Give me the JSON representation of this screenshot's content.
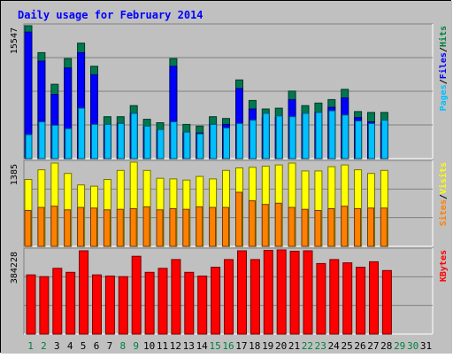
{
  "chart_data": [
    {
      "type": "bar",
      "title": "Daily usage for February 2014",
      "categories": [
        "1",
        "2",
        "3",
        "4",
        "5",
        "6",
        "7",
        "8",
        "9",
        "10",
        "11",
        "12",
        "13",
        "14",
        "15",
        "16",
        "17",
        "18",
        "19",
        "20",
        "21",
        "22",
        "23",
        "24",
        "25",
        "26",
        "27",
        "28",
        "29",
        "30",
        "31"
      ],
      "category_colors": [
        "#008040",
        "#008040",
        "#000000",
        "#000000",
        "#000000",
        "#000000",
        "#000000",
        "#008040",
        "#008040",
        "#000000",
        "#000000",
        "#000000",
        "#000000",
        "#000000",
        "#008040",
        "#008040",
        "#000000",
        "#000000",
        "#000000",
        "#000000",
        "#000000",
        "#008040",
        "#008040",
        "#000000",
        "#000000",
        "#000000",
        "#000000",
        "#000000",
        "#008040",
        "#008040",
        "#000000"
      ],
      "y_tick_label": "15547",
      "ymax": 15547,
      "right_labels": [
        {
          "text": "Pages",
          "color": "#00c0ff"
        },
        {
          "text": "/",
          "color": "#000000"
        },
        {
          "text": "Files",
          "color": "#0000ff"
        },
        {
          "text": "/",
          "color": "#000000"
        },
        {
          "text": "Hits",
          "color": "#008040"
        }
      ],
      "series": [
        {
          "name": "Hits",
          "color": "#007850",
          "values": [
            15547,
            12400,
            8700,
            11700,
            13500,
            10800,
            4900,
            4900,
            6200,
            4600,
            4200,
            11700,
            4000,
            3800,
            4900,
            4700,
            9200,
            6800,
            5800,
            5900,
            7900,
            6200,
            6500,
            6900,
            8100,
            5500,
            5400,
            5400,
            0,
            0,
            0
          ]
        },
        {
          "name": "Files",
          "color": "#0000ff",
          "values": [
            14800,
            11400,
            7500,
            10600,
            12400,
            9800,
            3800,
            4100,
            5300,
            3700,
            3300,
            10800,
            3000,
            3000,
            4000,
            4000,
            8200,
            5800,
            4800,
            4800,
            6900,
            5200,
            5400,
            6000,
            7100,
            4800,
            4300,
            4200,
            0,
            0,
            0
          ]
        },
        {
          "name": "Pages",
          "color": "#00c0ff",
          "values": [
            2800,
            4300,
            3900,
            3500,
            5900,
            4000,
            4000,
            4100,
            5300,
            3800,
            3400,
            4300,
            3100,
            2900,
            4000,
            3600,
            4100,
            4500,
            5300,
            5000,
            4900,
            5300,
            5400,
            5600,
            5100,
            4400,
            4100,
            4500,
            0,
            0,
            0
          ]
        }
      ]
    },
    {
      "type": "bar",
      "y_tick_label": "1385",
      "ymax": 1385,
      "right_labels": [
        {
          "text": "Sites",
          "color": "#ff8000"
        },
        {
          "text": "/",
          "color": "#000000"
        },
        {
          "text": "Visits",
          "color": "#ffff00"
        }
      ],
      "series": [
        {
          "name": "Visits",
          "color": "#ffff00",
          "values": [
            1100,
            1260,
            1370,
            1200,
            1010,
            990,
            1100,
            1250,
            1385,
            1250,
            1120,
            1110,
            1090,
            1150,
            1110,
            1250,
            1290,
            1300,
            1320,
            1340,
            1370,
            1240,
            1240,
            1310,
            1340,
            1260,
            1200,
            1250,
            0,
            0,
            0
          ]
        },
        {
          "name": "Sites",
          "color": "#ff8000",
          "values": [
            590,
            640,
            660,
            600,
            640,
            630,
            600,
            610,
            620,
            650,
            600,
            620,
            610,
            650,
            640,
            640,
            890,
            750,
            690,
            710,
            640,
            610,
            590,
            620,
            660,
            620,
            630,
            630,
            0,
            0,
            0
          ]
        }
      ]
    },
    {
      "type": "bar",
      "y_tick_label": "384228",
      "ymax": 384228,
      "right_labels": [
        {
          "text": "KBytes",
          "color": "#ff0000"
        }
      ],
      "series": [
        {
          "name": "KBytes",
          "color": "#ff0000",
          "values": [
            270000,
            262000,
            300000,
            282000,
            380000,
            270000,
            265000,
            262000,
            355000,
            282000,
            300000,
            340000,
            282000,
            265000,
            305000,
            340000,
            380000,
            340000,
            382000,
            384228,
            378000,
            380000,
            322000,
            340000,
            325000,
            305000,
            330000,
            290000,
            0,
            0,
            0
          ]
        }
      ]
    }
  ]
}
